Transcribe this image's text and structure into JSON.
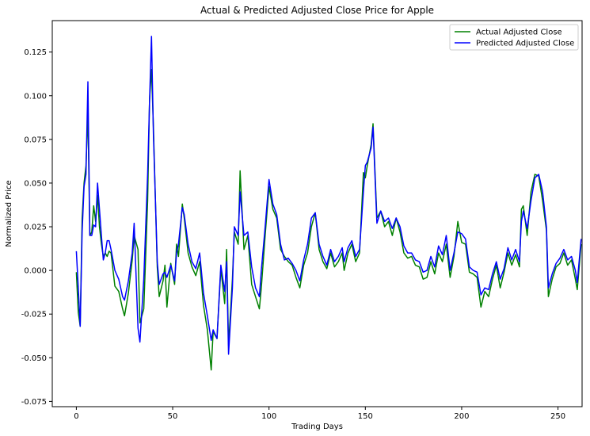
{
  "chart_data": {
    "type": "line",
    "title": "Actual & Predicted Adjusted Close Price for Apple",
    "xlabel": "Trading Days",
    "ylabel": "Normalized Price",
    "xlim": [
      -12.5,
      262.5
    ],
    "ylim": [
      -0.078,
      0.143
    ],
    "xticks": [
      0,
      50,
      100,
      150,
      200,
      250
    ],
    "yticks": [
      -0.075,
      -0.05,
      -0.025,
      0.0,
      0.025,
      0.05,
      0.075,
      0.1,
      0.125
    ],
    "ytick_labels": [
      "-0.075",
      "-0.050",
      "-0.025",
      "0.000",
      "0.025",
      "0.050",
      "0.075",
      "0.100",
      "0.125"
    ],
    "grid": false,
    "legend": "top-right",
    "series": [
      {
        "name": "Actual Adjusted Close",
        "color": "#008000",
        "points": [
          [
            0,
            -0.001
          ],
          [
            1,
            -0.024
          ],
          [
            2,
            -0.032
          ],
          [
            3,
            0.03
          ],
          [
            4,
            0.05
          ],
          [
            5,
            0.06
          ],
          [
            6,
            0.09
          ],
          [
            7,
            0.02
          ],
          [
            8,
            0.022
          ],
          [
            9,
            0.037
          ],
          [
            10,
            0.028
          ],
          [
            11,
            0.043
          ],
          [
            12,
            0.025
          ],
          [
            13,
            0.015
          ],
          [
            14,
            0.008
          ],
          [
            15,
            0.01
          ],
          [
            16,
            0.008
          ],
          [
            17,
            0.011
          ],
          [
            18,
            0.01
          ],
          [
            20,
            -0.009
          ],
          [
            22,
            -0.012
          ],
          [
            24,
            -0.022
          ],
          [
            25,
            -0.026
          ],
          [
            27,
            -0.013
          ],
          [
            29,
            0.006
          ],
          [
            30,
            0.02
          ],
          [
            32,
            0.012
          ],
          [
            33,
            -0.03
          ],
          [
            35,
            -0.022
          ],
          [
            37,
            0.04
          ],
          [
            38,
            0.098
          ],
          [
            39,
            0.115
          ],
          [
            40,
            0.082
          ],
          [
            42,
            0.002
          ],
          [
            43,
            -0.015
          ],
          [
            45,
            -0.006
          ],
          [
            46,
            0.003
          ],
          [
            47,
            -0.021
          ],
          [
            49,
            0.004
          ],
          [
            51,
            -0.008
          ],
          [
            52,
            0.015
          ],
          [
            53,
            0.008
          ],
          [
            55,
            0.038
          ],
          [
            56,
            0.03
          ],
          [
            58,
            0.01
          ],
          [
            60,
            0.002
          ],
          [
            62,
            -0.003
          ],
          [
            64,
            0.005
          ],
          [
            66,
            -0.02
          ],
          [
            68,
            -0.034
          ],
          [
            70,
            -0.057
          ],
          [
            71,
            -0.035
          ],
          [
            73,
            -0.039
          ],
          [
            75,
            0.001
          ],
          [
            77,
            -0.019
          ],
          [
            78,
            0.012
          ],
          [
            79,
            -0.043
          ],
          [
            81,
            -0.005
          ],
          [
            82,
            0.022
          ],
          [
            84,
            0.015
          ],
          [
            85,
            0.057
          ],
          [
            87,
            0.012
          ],
          [
            89,
            0.02
          ],
          [
            91,
            -0.008
          ],
          [
            93,
            -0.015
          ],
          [
            95,
            -0.022
          ],
          [
            96,
            -0.01
          ],
          [
            98,
            0.02
          ],
          [
            100,
            0.048
          ],
          [
            102,
            0.035
          ],
          [
            104,
            0.03
          ],
          [
            106,
            0.012
          ],
          [
            108,
            0.008
          ],
          [
            110,
            0.005
          ],
          [
            112,
            0.003
          ],
          [
            114,
            -0.004
          ],
          [
            116,
            -0.01
          ],
          [
            118,
            0.003
          ],
          [
            120,
            0.01
          ],
          [
            122,
            0.025
          ],
          [
            124,
            0.033
          ],
          [
            126,
            0.012
          ],
          [
            128,
            0.005
          ],
          [
            130,
            0.001
          ],
          [
            132,
            0.01
          ],
          [
            134,
            0.002
          ],
          [
            136,
            0.005
          ],
          [
            138,
            0.01
          ],
          [
            139,
            0.0
          ],
          [
            141,
            0.01
          ],
          [
            143,
            0.015
          ],
          [
            145,
            0.005
          ],
          [
            147,
            0.01
          ],
          [
            149,
            0.056
          ],
          [
            150,
            0.053
          ],
          [
            151,
            0.06
          ],
          [
            153,
            0.072
          ],
          [
            154,
            0.084
          ],
          [
            156,
            0.03
          ],
          [
            158,
            0.034
          ],
          [
            160,
            0.025
          ],
          [
            162,
            0.028
          ],
          [
            164,
            0.02
          ],
          [
            166,
            0.03
          ],
          [
            168,
            0.022
          ],
          [
            170,
            0.01
          ],
          [
            172,
            0.007
          ],
          [
            174,
            0.008
          ],
          [
            176,
            0.003
          ],
          [
            178,
            0.002
          ],
          [
            180,
            -0.005
          ],
          [
            182,
            -0.004
          ],
          [
            184,
            0.005
          ],
          [
            186,
            -0.002
          ],
          [
            188,
            0.01
          ],
          [
            190,
            0.005
          ],
          [
            192,
            0.015
          ],
          [
            194,
            -0.004
          ],
          [
            196,
            0.008
          ],
          [
            198,
            0.028
          ],
          [
            200,
            0.016
          ],
          [
            202,
            0.015
          ],
          [
            204,
            -0.001
          ],
          [
            206,
            -0.002
          ],
          [
            208,
            -0.004
          ],
          [
            210,
            -0.021
          ],
          [
            212,
            -0.012
          ],
          [
            214,
            -0.015
          ],
          [
            216,
            -0.005
          ],
          [
            218,
            0.003
          ],
          [
            220,
            -0.01
          ],
          [
            222,
            -0.001
          ],
          [
            224,
            0.01
          ],
          [
            226,
            0.003
          ],
          [
            228,
            0.009
          ],
          [
            230,
            0.002
          ],
          [
            231,
            0.035
          ],
          [
            232,
            0.037
          ],
          [
            234,
            0.02
          ],
          [
            236,
            0.045
          ],
          [
            238,
            0.055
          ],
          [
            240,
            0.054
          ],
          [
            242,
            0.04
          ],
          [
            244,
            0.023
          ],
          [
            245,
            -0.015
          ],
          [
            247,
            -0.005
          ],
          [
            249,
            0.002
          ],
          [
            251,
            0.004
          ],
          [
            253,
            0.01
          ],
          [
            255,
            0.003
          ],
          [
            257,
            0.006
          ],
          [
            259,
            -0.005
          ],
          [
            260,
            -0.011
          ],
          [
            262,
            0.015
          ]
        ]
      },
      {
        "name": "Predicted Adjusted Close",
        "color": "#0000ff",
        "points": [
          [
            0,
            0.011
          ],
          [
            1,
            -0.01
          ],
          [
            2,
            -0.032
          ],
          [
            3,
            0.022
          ],
          [
            4,
            0.048
          ],
          [
            5,
            0.055
          ],
          [
            6,
            0.108
          ],
          [
            7,
            0.02
          ],
          [
            8,
            0.02
          ],
          [
            9,
            0.026
          ],
          [
            10,
            0.025
          ],
          [
            11,
            0.05
          ],
          [
            12,
            0.035
          ],
          [
            13,
            0.02
          ],
          [
            14,
            0.006
          ],
          [
            15,
            0.01
          ],
          [
            16,
            0.017
          ],
          [
            17,
            0.017
          ],
          [
            18,
            0.012
          ],
          [
            20,
            0.0
          ],
          [
            22,
            -0.005
          ],
          [
            24,
            -0.015
          ],
          [
            25,
            -0.017
          ],
          [
            27,
            -0.006
          ],
          [
            29,
            0.01
          ],
          [
            30,
            0.027
          ],
          [
            32,
            -0.033
          ],
          [
            33,
            -0.041
          ],
          [
            35,
            -0.005
          ],
          [
            37,
            0.055
          ],
          [
            38,
            0.097
          ],
          [
            39,
            0.134
          ],
          [
            40,
            0.078
          ],
          [
            42,
            0.005
          ],
          [
            43,
            -0.008
          ],
          [
            45,
            -0.002
          ],
          [
            46,
            -0.001
          ],
          [
            47,
            -0.004
          ],
          [
            49,
            0.003
          ],
          [
            51,
            -0.006
          ],
          [
            52,
            0.01
          ],
          [
            53,
            0.015
          ],
          [
            55,
            0.036
          ],
          [
            56,
            0.032
          ],
          [
            58,
            0.015
          ],
          [
            60,
            0.005
          ],
          [
            62,
            0.001
          ],
          [
            64,
            0.01
          ],
          [
            66,
            -0.013
          ],
          [
            68,
            -0.026
          ],
          [
            70,
            -0.04
          ],
          [
            71,
            -0.034
          ],
          [
            73,
            -0.039
          ],
          [
            75,
            0.003
          ],
          [
            77,
            -0.012
          ],
          [
            78,
            0.005
          ],
          [
            79,
            -0.048
          ],
          [
            81,
            -0.01
          ],
          [
            82,
            0.025
          ],
          [
            84,
            0.02
          ],
          [
            85,
            0.045
          ],
          [
            87,
            0.02
          ],
          [
            89,
            0.022
          ],
          [
            91,
            0.002
          ],
          [
            93,
            -0.01
          ],
          [
            95,
            -0.015
          ],
          [
            96,
            0.0
          ],
          [
            98,
            0.025
          ],
          [
            100,
            0.052
          ],
          [
            102,
            0.038
          ],
          [
            104,
            0.032
          ],
          [
            106,
            0.015
          ],
          [
            108,
            0.006
          ],
          [
            110,
            0.007
          ],
          [
            112,
            0.004
          ],
          [
            114,
            0.0
          ],
          [
            116,
            -0.006
          ],
          [
            118,
            0.006
          ],
          [
            120,
            0.015
          ],
          [
            122,
            0.03
          ],
          [
            124,
            0.033
          ],
          [
            126,
            0.015
          ],
          [
            128,
            0.008
          ],
          [
            130,
            0.003
          ],
          [
            132,
            0.012
          ],
          [
            134,
            0.005
          ],
          [
            136,
            0.008
          ],
          [
            138,
            0.013
          ],
          [
            139,
            0.005
          ],
          [
            141,
            0.013
          ],
          [
            143,
            0.017
          ],
          [
            145,
            0.008
          ],
          [
            147,
            0.012
          ],
          [
            149,
            0.045
          ],
          [
            150,
            0.06
          ],
          [
            151,
            0.062
          ],
          [
            153,
            0.07
          ],
          [
            154,
            0.082
          ],
          [
            156,
            0.027
          ],
          [
            158,
            0.034
          ],
          [
            160,
            0.028
          ],
          [
            162,
            0.03
          ],
          [
            164,
            0.024
          ],
          [
            166,
            0.03
          ],
          [
            168,
            0.025
          ],
          [
            170,
            0.014
          ],
          [
            172,
            0.01
          ],
          [
            174,
            0.01
          ],
          [
            176,
            0.006
          ],
          [
            178,
            0.005
          ],
          [
            180,
            -0.001
          ],
          [
            182,
            0.0
          ],
          [
            184,
            0.008
          ],
          [
            186,
            0.002
          ],
          [
            188,
            0.014
          ],
          [
            190,
            0.009
          ],
          [
            192,
            0.02
          ],
          [
            194,
            0.0
          ],
          [
            196,
            0.01
          ],
          [
            198,
            0.022
          ],
          [
            200,
            0.021
          ],
          [
            202,
            0.018
          ],
          [
            204,
            0.002
          ],
          [
            206,
            0.0
          ],
          [
            208,
            -0.001
          ],
          [
            210,
            -0.014
          ],
          [
            212,
            -0.01
          ],
          [
            214,
            -0.011
          ],
          [
            216,
            -0.002
          ],
          [
            218,
            0.005
          ],
          [
            220,
            -0.005
          ],
          [
            222,
            0.001
          ],
          [
            224,
            0.013
          ],
          [
            226,
            0.006
          ],
          [
            228,
            0.012
          ],
          [
            230,
            0.005
          ],
          [
            231,
            0.028
          ],
          [
            232,
            0.034
          ],
          [
            234,
            0.024
          ],
          [
            236,
            0.04
          ],
          [
            238,
            0.053
          ],
          [
            240,
            0.055
          ],
          [
            242,
            0.045
          ],
          [
            244,
            0.025
          ],
          [
            245,
            -0.01
          ],
          [
            247,
            -0.002
          ],
          [
            249,
            0.004
          ],
          [
            251,
            0.007
          ],
          [
            253,
            0.012
          ],
          [
            255,
            0.006
          ],
          [
            257,
            0.008
          ],
          [
            259,
            0.0
          ],
          [
            260,
            -0.007
          ],
          [
            262,
            0.018
          ]
        ]
      }
    ]
  }
}
